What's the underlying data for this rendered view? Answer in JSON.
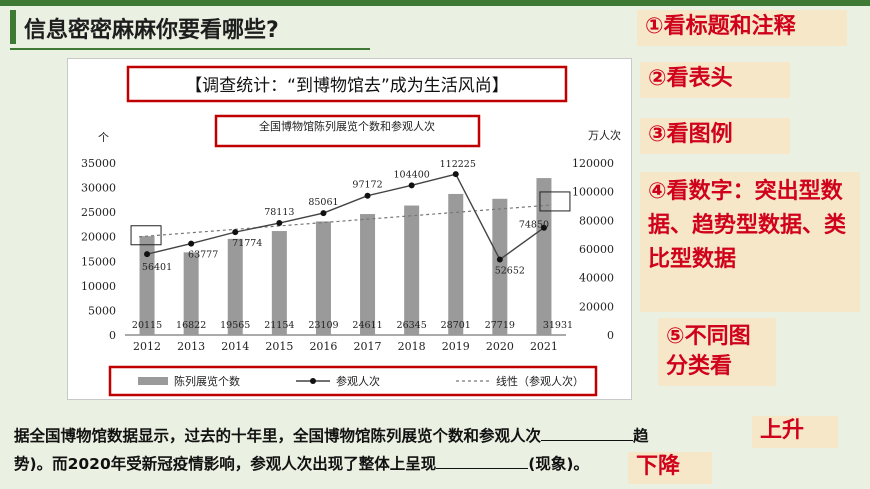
{
  "slide": {
    "title": "信息密密麻麻你要看哪些?",
    "steps": [
      {
        "label": "①看标题和注释"
      },
      {
        "label": "②看表头"
      },
      {
        "label": "③看图例"
      },
      {
        "label": "④看数字：突出型数据、趋势型数据、类比型数据"
      },
      {
        "label": "⑤不同图分类看"
      }
    ],
    "fill_in": {
      "line1": "据全国博物馆数据显示，过去的十年里，全国博物馆陈列展览个数和参观人次",
      "line1_end": "趋",
      "line2_start": "势)。而2020年受新冠疫情影响，参观人次出现了整体上呈现",
      "line2_end": "(现象)。",
      "answer1": "上升",
      "answer2": "下降"
    },
    "colors": {
      "accent_green": "#3f7a35",
      "red": "#c00000",
      "step_text": "#d0021b",
      "step_bg": "#f7e7c9",
      "bar": "#9a9a9a"
    }
  },
  "chart_data": {
    "type": "bar",
    "header": "【调查统计：“到博物馆去”成为生活风尚】",
    "title": "全国博物馆陈列展览个数和参观人次",
    "ylabel_left": "个",
    "ylabel_right": "万人次",
    "ylim_left": [
      0,
      35000
    ],
    "ylim_right": [
      0,
      120000
    ],
    "yticks_left": [
      0,
      5000,
      10000,
      15000,
      20000,
      25000,
      30000,
      35000
    ],
    "yticks_right": [
      0,
      20000,
      40000,
      60000,
      80000,
      100000,
      120000
    ],
    "categories": [
      "2012",
      "2013",
      "2014",
      "2015",
      "2016",
      "2017",
      "2018",
      "2019",
      "2020",
      "2021"
    ],
    "series": [
      {
        "name": "陈列展览个数",
        "type": "bar",
        "axis": "left",
        "values": [
          20115,
          16822,
          19565,
          21154,
          23109,
          24611,
          26345,
          28701,
          27719,
          31931
        ]
      },
      {
        "name": "参观人次",
        "type": "line",
        "axis": "right",
        "values": [
          56401,
          63777,
          71774,
          78113,
          85061,
          97172,
          104400,
          112225,
          52652,
          74850
        ]
      },
      {
        "name": "线性（参观人次）",
        "type": "trend",
        "axis": "right"
      }
    ],
    "legend_position": "bottom",
    "grid": false
  }
}
